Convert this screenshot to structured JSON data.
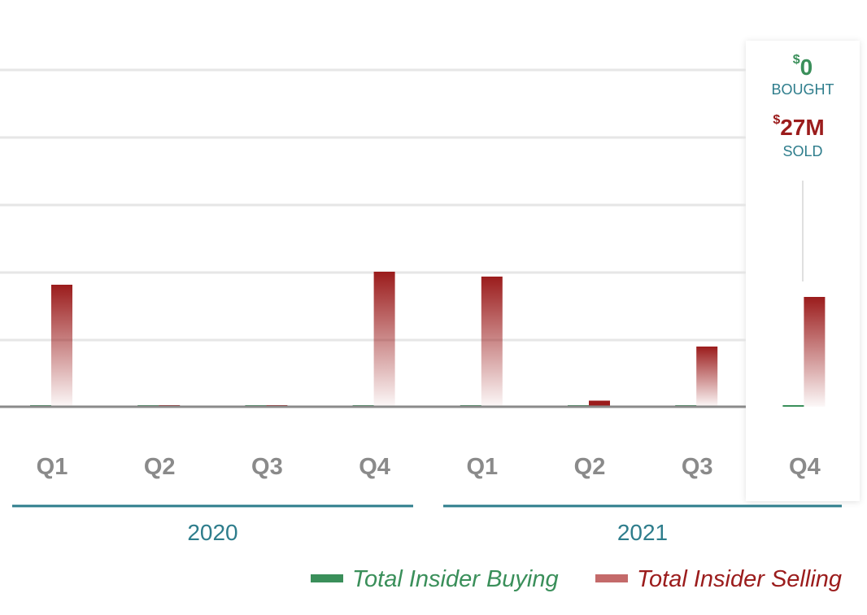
{
  "chart_data": {
    "type": "bar",
    "categories": [
      "Q1",
      "Q2",
      "Q3",
      "Q4",
      "Q1",
      "Q2",
      "Q3",
      "Q4"
    ],
    "groups": [
      {
        "label": "2020",
        "quarters": [
          "Q1",
          "Q2",
          "Q3",
          "Q4"
        ]
      },
      {
        "label": "2021",
        "quarters": [
          "Q1",
          "Q2",
          "Q3",
          "Q4"
        ]
      }
    ],
    "series": [
      {
        "name": "Total Insider Buying",
        "color": "#3a8f5a",
        "values": [
          0,
          0,
          0,
          0,
          0,
          0,
          0,
          0
        ]
      },
      {
        "name": "Total Insider Selling",
        "color": "#9b1c1c",
        "values": [
          30,
          0,
          0,
          33.2,
          32,
          1.5,
          14.8,
          27
        ]
      }
    ],
    "ylim": [
      0,
      100
    ],
    "grid": true,
    "legend_position": "bottom-right",
    "highlight_index": 7,
    "tooltip": {
      "bought": {
        "symbol": "$",
        "value": "0",
        "label": "BOUGHT"
      },
      "sold": {
        "symbol": "$",
        "value": "27M",
        "label": "SOLD"
      }
    }
  },
  "colors": {
    "buying": "#3a8f5a",
    "selling": "#9b1c1c",
    "selling_legend": "#c46a6a",
    "year_line": "#2e7d8c",
    "grid": "#e6e6e6",
    "baseline": "#8a8a8a"
  }
}
